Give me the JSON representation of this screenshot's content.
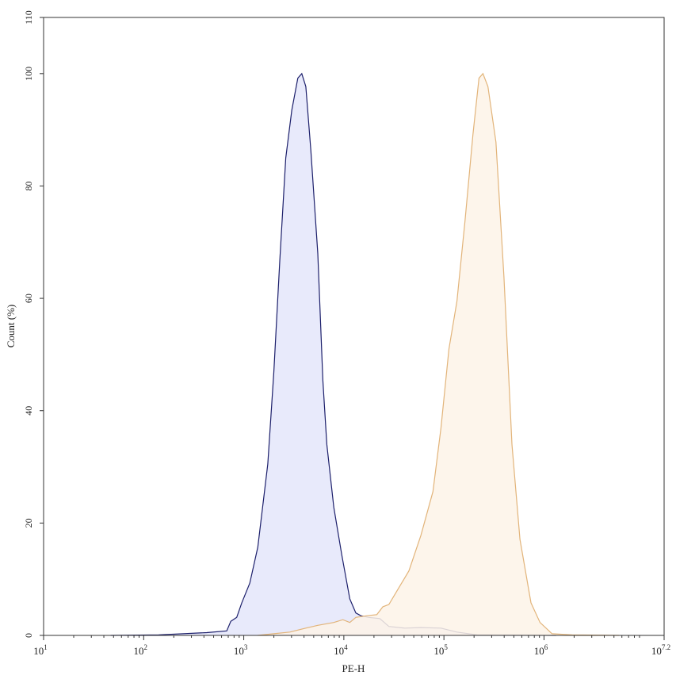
{
  "chart_data": {
    "type": "area",
    "title": "",
    "xlabel": "PE-H",
    "ylabel": "Count (%)",
    "x_scale": "log10",
    "xlim_log10": [
      1,
      7.2
    ],
    "ylim": [
      0,
      110
    ],
    "x_ticks": [
      {
        "exp": "1",
        "value": 1
      },
      {
        "exp": "2",
        "value": 2
      },
      {
        "exp": "3",
        "value": 3
      },
      {
        "exp": "4",
        "value": 4
      },
      {
        "exp": "5",
        "value": 5
      },
      {
        "exp": "6",
        "value": 6
      },
      {
        "exp": "7.2",
        "value": 7.2
      }
    ],
    "x_tick_base": "10",
    "y_ticks": [
      "0",
      "20",
      "40",
      "60",
      "80",
      "100",
      "110"
    ],
    "grid": false,
    "legend": "none",
    "series": [
      {
        "color": "#1c1f6b",
        "fill": "#e4e6fa",
        "x_log10": [
          1.67,
          2.15,
          2.63,
          2.83,
          2.87,
          2.93,
          2.98,
          3.06,
          3.14,
          3.24,
          3.3,
          3.36,
          3.42,
          3.48,
          3.54,
          3.58,
          3.62,
          3.67,
          3.74,
          3.79,
          3.83,
          3.9,
          3.98,
          4.06,
          4.12,
          4.17,
          4.25,
          4.36,
          4.45,
          4.61,
          4.77,
          4.97,
          5.13,
          5.33,
          6.12
        ],
        "y": [
          0,
          0.1,
          0.5,
          0.8,
          2.5,
          3.2,
          5.8,
          9.3,
          15.7,
          30.5,
          46.8,
          66.6,
          85,
          93.5,
          99.2,
          100,
          97.7,
          86.4,
          68,
          45.4,
          34,
          22.8,
          14.3,
          6.5,
          4,
          3.5,
          3.2,
          3,
          1.6,
          1.3,
          1.4,
          1.3,
          0.6,
          0.1,
          0
        ]
      },
      {
        "color": "#e2b47a",
        "fill": "#fdf3e8",
        "x_log10": [
          3.14,
          3.3,
          3.46,
          3.62,
          3.74,
          3.9,
          3.99,
          4.06,
          4.12,
          4.23,
          4.33,
          4.39,
          4.45,
          4.53,
          4.65,
          4.77,
          4.89,
          4.97,
          5.05,
          5.13,
          5.21,
          5.29,
          5.35,
          5.39,
          5.44,
          5.52,
          5.6,
          5.68,
          5.76,
          5.87,
          5.96,
          6.08,
          6.28,
          6.75
        ],
        "y": [
          0,
          0.3,
          0.6,
          1.3,
          1.8,
          2.3,
          2.8,
          2.3,
          3.2,
          3.5,
          3.7,
          5.1,
          5.5,
          7.9,
          11.5,
          17.8,
          25.6,
          36.9,
          51,
          59.5,
          73.7,
          89.2,
          99.2,
          100,
          97.7,
          87.8,
          63.8,
          34,
          17.1,
          5.8,
          2.3,
          0.3,
          0.1,
          0
        ]
      }
    ]
  }
}
